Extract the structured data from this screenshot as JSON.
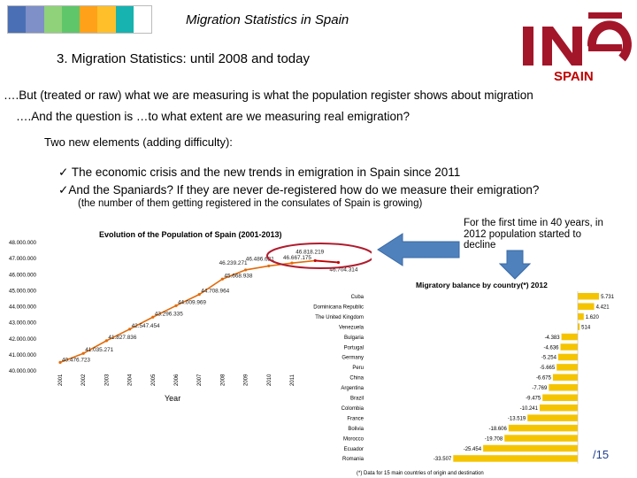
{
  "header": {
    "title": "Migration Statistics in Spain",
    "subtitle": "3. Migration Statistics: until 2008 and today",
    "logo_text": "INE",
    "spain_label": "SPAIN",
    "strip_colors": [
      "#4a6fb5",
      "#7f8fc8",
      "#8fd27a",
      "#5fc66a",
      "#ffa21a",
      "#ffbf2a",
      "#16b3b0",
      "#ffffff"
    ]
  },
  "body": {
    "line1": "….But (treated or raw) what we are measuring is what the population register shows about migration",
    "line2": "….And the question is …to what extent are we measuring real emigration?",
    "line3": "Two new elements (adding difficulty):",
    "bullet1": "The economic crisis and the new trends in emigration in Spain since 2011",
    "bullet2": "And the Spaniards? If they are never de-registered how do we measure their emigration?",
    "note_small": "(the number of them getting registered in the consulates of Spain is growing)",
    "annotation": "For the first time in 40 years, in 2012 population started to decline",
    "page_number": "/15"
  },
  "chart_data": [
    {
      "type": "line",
      "title": "Evolution of the Population of Spain (2001-2013)",
      "xlabel": "Year",
      "ylabel": "",
      "y_tick_labels": [
        "40.000.000",
        "41.000.000",
        "42.000.000",
        "43.000.000",
        "44.000.000",
        "45.000.000",
        "46.000.000",
        "47.000.000",
        "48.000.000"
      ],
      "ylim": [
        40000000,
        48000000
      ],
      "x": [
        "2001",
        "2002",
        "2003",
        "2004",
        "2005",
        "2006",
        "2007",
        "2008",
        "2009",
        "2010",
        "2011",
        "2012",
        "2013"
      ],
      "x_tick_labels": [
        "2001",
        "2002",
        "2003",
        "2004",
        "2005",
        "2006",
        "2007",
        "2008",
        "2009",
        "2010",
        "2011"
      ],
      "values": [
        40476723,
        41035271,
        41827836,
        42547454,
        43296335,
        44009969,
        44708964,
        45668938,
        46239271,
        46486621,
        46667175,
        46818219,
        46704314
      ],
      "labels": [
        "40.476.723",
        "41.035.271",
        "41.827.836",
        "42.547.454",
        "43.296.335",
        "44.009.969",
        "44.708.964",
        "45.668.938",
        "46.239.271",
        "46.486.621",
        "46.667.175",
        "46.818.219",
        "46.704.314"
      ],
      "line_color": "#e26b0a",
      "highlight_color": "#c00000"
    },
    {
      "type": "bar",
      "orientation": "horizontal",
      "title": "Migratory balance by country(*)  2012",
      "footnote": "(*) Data for 15 main countries of origin and destination",
      "categories": [
        "Cuba",
        "Dominicana Republic",
        "The United Kingdom",
        "Venezuela",
        "Bulgaria",
        "Portugal",
        "Germany",
        "Peru",
        "China",
        "Argentina",
        "Brazil",
        "Colombia",
        "France",
        "Bolivia",
        "Morocco",
        "Ecuador",
        "Romania"
      ],
      "values": [
        5731,
        4421,
        1620,
        514,
        -4383,
        -4636,
        -5254,
        -5665,
        -6675,
        -7769,
        -9475,
        -10241,
        -13519,
        -18606,
        -19708,
        -25454,
        -33507
      ],
      "labels": [
        "5.731",
        "4.421",
        "1.620",
        "514",
        "-4.383",
        "-4.636",
        "-5.254",
        "-5.665",
        "-6.675",
        "-7.769",
        "-9.475",
        "-10.241",
        "-13.519",
        "-18.606",
        "-19.708",
        "-25.454",
        "-33.507"
      ],
      "bar_color": "#f5c400"
    }
  ]
}
